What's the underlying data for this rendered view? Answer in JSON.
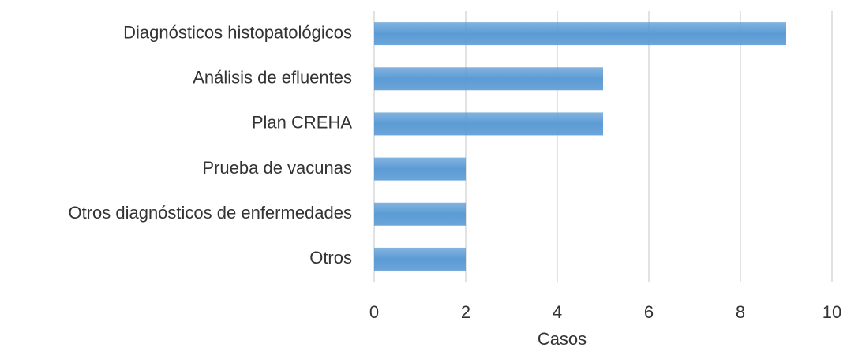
{
  "chart_data": {
    "type": "bar",
    "orientation": "horizontal",
    "categories": [
      "Diagnósticos histopatológicos",
      "Análisis de efluentes",
      "Plan CREHA",
      "Prueba de vacunas",
      "Otros diagnósticos de enfermedades",
      "Otros"
    ],
    "values": [
      9,
      5,
      5,
      2,
      2,
      2
    ],
    "color": "#5b9bd5",
    "xlabel": "Casos",
    "xlim": [
      0,
      10
    ],
    "xticks": [
      0,
      2,
      4,
      6,
      8,
      10
    ],
    "grid": true
  }
}
